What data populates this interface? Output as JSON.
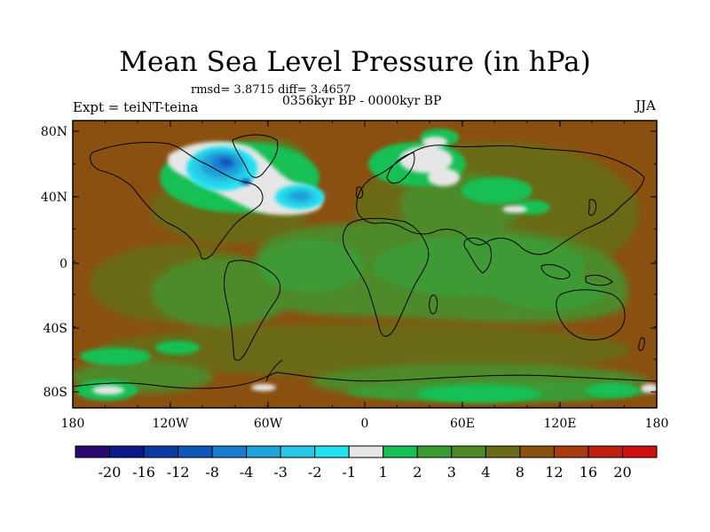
{
  "title": "Mean Sea Level Pressure (in hPa)",
  "stats": "rmsd= 3.8715 diff= 3.4657",
  "period": "0356kyr BP - 0000kyr BP",
  "experiment": "Expt = teiNT-teina",
  "season": "JJA",
  "axes": {
    "lat_ticks": [
      "80N",
      "40N",
      "0",
      "40S",
      "80S"
    ],
    "lon_ticks": [
      "180",
      "120W",
      "60W",
      "0",
      "60E",
      "120E",
      "180"
    ]
  },
  "colorbar": {
    "labels": [
      "-20",
      "-16",
      "-12",
      "-8",
      "-4",
      "-3",
      "-2",
      "-1",
      "1",
      "2",
      "3",
      "4",
      "8",
      "12",
      "16",
      "20"
    ],
    "colors": [
      "#2a0a6e",
      "#0b1a8a",
      "#0b3aa0",
      "#1055b8",
      "#1a7bd0",
      "#1fa3d9",
      "#27c8e6",
      "#22e2f0",
      "#e6e6e6",
      "#19c055",
      "#3c9a35",
      "#4e8a2a",
      "#6a6a18",
      "#8a5010",
      "#a83a10",
      "#c02010",
      "#d01010"
    ]
  }
}
